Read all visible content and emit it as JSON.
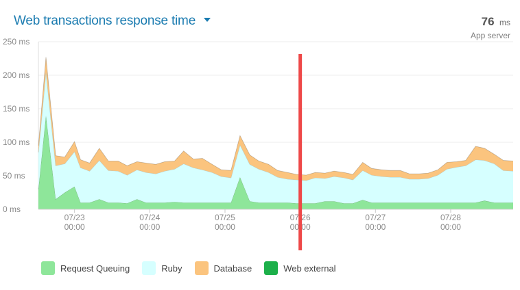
{
  "header": {
    "title": "Web transactions response time",
    "summary_value": "76",
    "summary_unit": "ms",
    "summary_label": "App server"
  },
  "colors": {
    "request_queuing": "#8ee69a",
    "ruby": "#d6ffff",
    "database": "#fbc47e",
    "web_external": "#1db04a",
    "marker": "#ee4848"
  },
  "chart_data": {
    "type": "area",
    "stacked": true,
    "ylim": [
      0,
      250
    ],
    "y_ticks": [
      "250 ms",
      "200 ms",
      "150 ms",
      "100 ms",
      "50 ms",
      "0 ms"
    ],
    "y_tick_values": [
      250,
      200,
      150,
      100,
      50,
      0
    ],
    "x_ticks": [
      {
        "x": 1,
        "date": "07/23",
        "time": "00:00"
      },
      {
        "x": 2,
        "date": "07/24",
        "time": "00:00"
      },
      {
        "x": 3,
        "date": "07/25",
        "time": "00:00"
      },
      {
        "x": 4,
        "date": "07/26",
        "time": "00:00"
      },
      {
        "x": 5,
        "date": "07/27",
        "time": "00:00"
      },
      {
        "x": 6,
        "date": "07/28",
        "time": "00:00"
      }
    ],
    "x_domain": [
      0.52,
      6.83
    ],
    "x": [
      0.52,
      0.62,
      0.75,
      0.87,
      1.0,
      1.08,
      1.2,
      1.33,
      1.45,
      1.58,
      1.7,
      1.83,
      1.95,
      2.08,
      2.2,
      2.33,
      2.45,
      2.58,
      2.7,
      2.83,
      2.95,
      3.08,
      3.2,
      3.33,
      3.45,
      3.58,
      3.7,
      3.83,
      3.95,
      4.08,
      4.2,
      4.33,
      4.45,
      4.58,
      4.7,
      4.83,
      4.95,
      5.08,
      5.2,
      5.33,
      5.45,
      5.58,
      5.7,
      5.83,
      5.95,
      6.08,
      6.2,
      6.33,
      6.45,
      6.58,
      6.7,
      6.83
    ],
    "grid": true,
    "legend_position": "bottom",
    "series": [
      {
        "name": "Request Queuing",
        "color_key": "request_queuing",
        "values": [
          30,
          140,
          15,
          25,
          34,
          10,
          10,
          15,
          10,
          10,
          9,
          15,
          10,
          10,
          10,
          11,
          10,
          10,
          10,
          10,
          10,
          10,
          48,
          12,
          10,
          10,
          10,
          10,
          9,
          9,
          9,
          12,
          12,
          9,
          9,
          14,
          10,
          10,
          10,
          10,
          10,
          10,
          10,
          10,
          10,
          10,
          10,
          10,
          13,
          10,
          10,
          10
        ]
      },
      {
        "name": "Ruby",
        "color_key": "ruby",
        "values": [
          55,
          65,
          50,
          43,
          52,
          52,
          47,
          58,
          48,
          47,
          42,
          44,
          45,
          43,
          47,
          49,
          58,
          52,
          49,
          45,
          39,
          37,
          48,
          55,
          50,
          45,
          38,
          35,
          35,
          34,
          38,
          34,
          37,
          38,
          35,
          44,
          41,
          39,
          38,
          38,
          35,
          35,
          36,
          41,
          50,
          53,
          55,
          64,
          60,
          58,
          48,
          47
        ]
      },
      {
        "name": "Database",
        "color_key": "database",
        "values": [
          10,
          22,
          15,
          10,
          15,
          12,
          12,
          18,
          14,
          15,
          14,
          12,
          14,
          14,
          14,
          12,
          19,
          13,
          17,
          12,
          10,
          11,
          14,
          14,
          12,
          12,
          10,
          10,
          8,
          8,
          8,
          8,
          8,
          8,
          8,
          12,
          10,
          10,
          10,
          10,
          8,
          8,
          8,
          8,
          10,
          8,
          8,
          20,
          18,
          14,
          15,
          15
        ]
      },
      {
        "name": "Web external",
        "color_key": "web_external",
        "values": [
          0,
          0,
          0,
          0,
          0,
          0,
          0,
          0,
          0,
          0,
          0,
          0,
          0,
          0,
          0,
          0,
          0,
          0,
          0,
          0,
          0,
          0,
          0,
          0,
          0,
          0,
          0,
          0,
          0,
          0,
          0,
          0,
          0,
          0,
          0,
          0,
          0,
          0,
          0,
          0,
          0,
          0,
          0,
          0,
          0,
          0,
          0,
          0,
          0,
          0,
          0,
          0
        ]
      }
    ],
    "marker": {
      "x": 4.0,
      "color_key": "marker"
    }
  }
}
